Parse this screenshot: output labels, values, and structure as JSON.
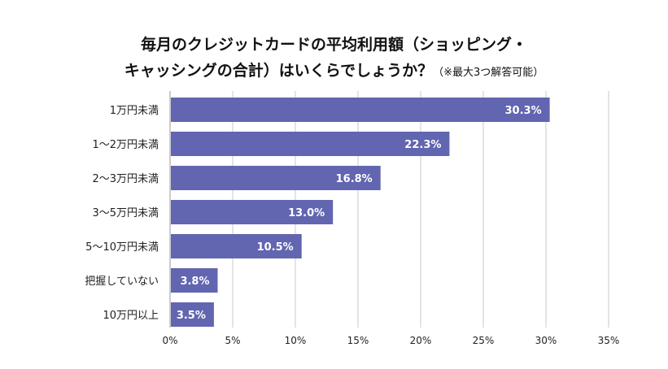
{
  "chart_data": {
    "type": "bar",
    "orientation": "horizontal",
    "title_line1": "毎月のクレジットカードの平均利用額（ショッピング・",
    "title_line2": "キャッシングの合計）はいくらでしょうか？",
    "title_note": "（※最大3つ解答可能）",
    "categories": [
      "1万円未満",
      "1～2万円未満",
      "2～3万円未満",
      "3～5万円未満",
      "5～10万円未満",
      "把握していない",
      "10万円以上"
    ],
    "values": [
      30.3,
      22.3,
      16.8,
      13.0,
      10.5,
      3.8,
      3.5
    ],
    "value_labels": [
      "30.3%",
      "22.3%",
      "16.8%",
      "13.0%",
      "10.5%",
      "3.8%",
      "3.5%"
    ],
    "xlim": [
      0,
      35
    ],
    "xticks": [
      0,
      5,
      10,
      15,
      20,
      25,
      30,
      35
    ],
    "xtick_labels": [
      "0%",
      "5%",
      "10%",
      "15%",
      "20%",
      "25%",
      "30%",
      "35%"
    ],
    "xlabel": "",
    "ylabel": "",
    "grid": true,
    "bar_color": "#6265b0"
  }
}
